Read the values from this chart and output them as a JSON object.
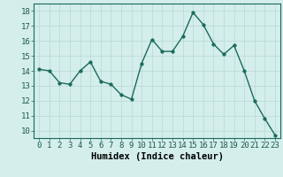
{
  "x": [
    0,
    1,
    2,
    3,
    4,
    5,
    6,
    7,
    8,
    9,
    10,
    11,
    12,
    13,
    14,
    15,
    16,
    17,
    18,
    19,
    20,
    21,
    22,
    23
  ],
  "y": [
    14.1,
    14.0,
    13.2,
    13.1,
    14.0,
    14.6,
    13.3,
    13.1,
    12.4,
    12.1,
    14.5,
    16.1,
    15.3,
    15.3,
    16.3,
    17.9,
    17.1,
    15.8,
    15.1,
    15.7,
    14.0,
    12.0,
    10.8,
    9.7
  ],
  "line_color": "#1a6b5a",
  "marker_color": "#1a6b5a",
  "bg_color": "#d4eeeb",
  "grid_color": "#b8d8d4",
  "xlabel": "Humidex (Indice chaleur)",
  "xlim": [
    -0.5,
    23.5
  ],
  "ylim": [
    9.5,
    18.5
  ],
  "yticks": [
    10,
    11,
    12,
    13,
    14,
    15,
    16,
    17,
    18
  ],
  "xticks": [
    0,
    1,
    2,
    3,
    4,
    5,
    6,
    7,
    8,
    9,
    10,
    11,
    12,
    13,
    14,
    15,
    16,
    17,
    18,
    19,
    20,
    21,
    22,
    23
  ],
  "xlabel_fontsize": 7.5,
  "tick_fontsize": 6.5,
  "line_width": 1.0,
  "marker_size": 2.5
}
